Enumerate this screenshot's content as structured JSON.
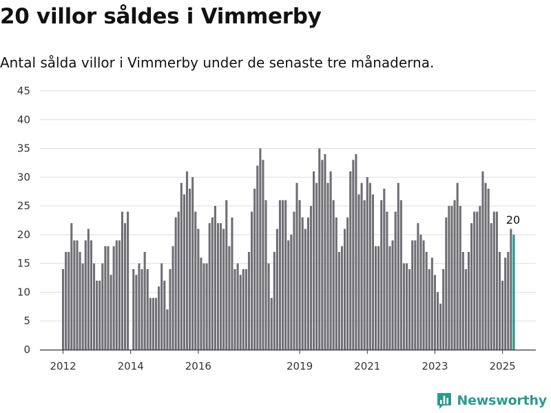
{
  "header": {
    "title": "20 villor såldes i Vimmerby",
    "subtitle": "Antal sålda villor i Vimmerby under de senaste tre månaderna."
  },
  "brand": {
    "name": "Newsworthy",
    "icon": "bar-chart-logo-icon",
    "color": "#2a9a8f"
  },
  "colors": {
    "bar": "#6f6e74",
    "highlight": "#149a8c",
    "grid": "#dddddd"
  },
  "chart_data": {
    "type": "bar",
    "title": "20 villor såldes i Vimmerby",
    "subtitle": "Antal sålda villor i Vimmerby under de senaste tre månaderna.",
    "xlabel": "",
    "ylabel": "",
    "ylim": [
      0,
      45
    ],
    "yticks": [
      0,
      5,
      10,
      15,
      20,
      25,
      30,
      35,
      40,
      45
    ],
    "xticks": [
      {
        "label": "2012",
        "date": "2012-01"
      },
      {
        "label": "2014",
        "date": "2014-01"
      },
      {
        "label": "2016",
        "date": "2016-01"
      },
      {
        "label": "2019",
        "date": "2019-01"
      },
      {
        "label": "2021",
        "date": "2021-01"
      },
      {
        "label": "2023",
        "date": "2023-01"
      },
      {
        "label": "2025",
        "date": "2025-01"
      }
    ],
    "grid": true,
    "legend": "none",
    "first_month": "2012-01",
    "values": [
      14,
      17,
      17,
      22,
      19,
      19,
      17,
      15,
      19,
      21,
      19,
      15,
      12,
      12,
      15,
      18,
      18,
      13,
      18,
      19,
      19,
      24,
      22,
      24,
      0,
      14,
      13,
      15,
      14,
      17,
      14,
      9,
      9,
      9,
      11,
      15,
      12,
      7,
      14,
      18,
      23,
      24,
      29,
      27,
      31,
      28,
      30,
      24,
      21,
      16,
      15,
      15,
      22,
      23,
      25,
      22,
      22,
      21,
      26,
      18,
      23,
      14,
      15,
      13,
      14,
      14,
      17,
      24,
      28,
      32,
      35,
      33,
      26,
      15,
      9,
      17,
      21,
      26,
      26,
      26,
      19,
      20,
      24,
      29,
      26,
      23,
      21,
      23,
      25,
      31,
      29,
      35,
      33,
      34,
      29,
      31,
      26,
      23,
      17,
      18,
      21,
      23,
      31,
      33,
      34,
      27,
      29,
      26,
      30,
      29,
      27,
      18,
      18,
      26,
      28,
      24,
      18,
      19,
      24,
      29,
      26,
      15,
      15,
      14,
      19,
      19,
      22,
      20,
      19,
      17,
      14,
      16,
      13,
      10,
      8,
      14,
      23,
      25,
      25,
      26,
      29,
      25,
      17,
      14,
      17,
      22,
      24,
      24,
      25,
      31,
      29,
      28,
      22,
      24,
      24,
      17,
      12,
      16,
      17,
      21,
      20
    ],
    "highlight_index": 160,
    "highlight_label": "20"
  }
}
